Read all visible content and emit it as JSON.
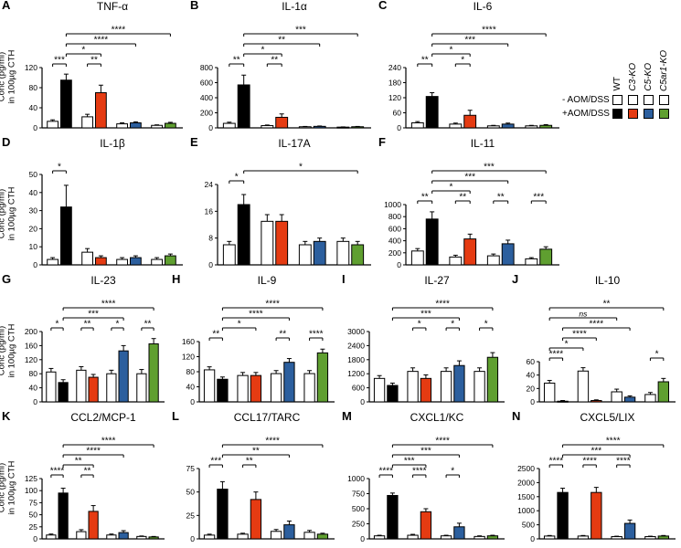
{
  "legend": {
    "groups": [
      "WT",
      "C3-KO",
      "C5-KO",
      "C5ar1-KO"
    ],
    "rows": [
      {
        "label": "- AOM/DSS",
        "fills": [
          "#ffffff",
          "#ffffff",
          "#ffffff",
          "#ffffff"
        ]
      },
      {
        "label": "+AOM/DSS",
        "fills": [
          "#000000",
          "#e53b12",
          "#2c5f9e",
          "#5f9f30"
        ]
      }
    ]
  },
  "chart_data": {
    "type": "bar",
    "shared_ylabel": "Conc (pg/ml) in 100µg CTH",
    "ylabel_line1": "Conc (pg/ml)",
    "ylabel_line2": "in 100µg CTH",
    "bar_order": [
      "WT -AOM/DSS",
      "WT +AOM/DSS",
      "C3-KO -AOM/DSS",
      "C3-KO +AOM/DSS",
      "C5-KO -AOM/DSS",
      "C5-KO +AOM/DSS",
      "C5ar1-KO -AOM/DSS",
      "C5ar1-KO +AOM/DSS"
    ],
    "panels": [
      {
        "letter": "A",
        "title": "TNF-α",
        "ylabel": true,
        "ylim": [
          0,
          120
        ],
        "yticks": [
          0,
          40,
          80,
          120
        ],
        "values": [
          13,
          95,
          22,
          70,
          8,
          10,
          5,
          9
        ],
        "errors": [
          3,
          12,
          5,
          15,
          2,
          2,
          1,
          2
        ],
        "sig": [
          {
            "i1": 0,
            "i2": 1,
            "label": "***",
            "level": 0
          },
          {
            "i1": 2,
            "i2": 3,
            "label": "**",
            "level": 0
          },
          {
            "i1": 1,
            "i2": 3,
            "label": "*",
            "level": 1
          },
          {
            "i1": 1,
            "i2": 5,
            "label": "****",
            "level": 2
          },
          {
            "i1": 1,
            "i2": 7,
            "label": "****",
            "level": 3
          }
        ]
      },
      {
        "letter": "B",
        "title": "IL-1α",
        "ylabel": false,
        "ylim": [
          0,
          800
        ],
        "yticks": [
          0,
          200,
          400,
          600,
          800
        ],
        "values": [
          60,
          570,
          30,
          140,
          15,
          20,
          10,
          15
        ],
        "errors": [
          15,
          130,
          8,
          45,
          4,
          5,
          3,
          4
        ],
        "sig": [
          {
            "i1": 0,
            "i2": 1,
            "label": "**",
            "level": 0
          },
          {
            "i1": 2,
            "i2": 3,
            "label": "**",
            "level": 0
          },
          {
            "i1": 1,
            "i2": 3,
            "label": "*",
            "level": 1
          },
          {
            "i1": 1,
            "i2": 5,
            "label": "**",
            "level": 2
          },
          {
            "i1": 1,
            "i2": 7,
            "label": "***",
            "level": 3
          }
        ]
      },
      {
        "letter": "C",
        "title": "IL-6",
        "ylabel": false,
        "ylim": [
          0,
          240
        ],
        "yticks": [
          0,
          60,
          120,
          180,
          240
        ],
        "values": [
          20,
          125,
          15,
          50,
          8,
          15,
          8,
          10
        ],
        "errors": [
          5,
          15,
          4,
          20,
          2,
          4,
          2,
          3
        ],
        "sig": [
          {
            "i1": 0,
            "i2": 1,
            "label": "**",
            "level": 0
          },
          {
            "i1": 2,
            "i2": 3,
            "label": "*",
            "level": 0
          },
          {
            "i1": 1,
            "i2": 3,
            "label": "*",
            "level": 1
          },
          {
            "i1": 1,
            "i2": 5,
            "label": "***",
            "level": 2
          },
          {
            "i1": 1,
            "i2": 7,
            "label": "****",
            "level": 3
          }
        ]
      },
      {
        "letter": "D",
        "title": "IL-1β",
        "ylabel": true,
        "ylim": [
          0,
          50
        ],
        "yticks": [
          0,
          10,
          20,
          30,
          40,
          50
        ],
        "values": [
          3,
          32,
          7,
          4,
          3,
          4,
          3,
          5
        ],
        "errors": [
          1,
          12,
          2,
          1,
          1,
          1,
          1,
          1
        ],
        "sig": [
          {
            "i1": 0,
            "i2": 1,
            "label": "*",
            "level": 0
          }
        ]
      },
      {
        "letter": "E",
        "title": "IL-17A",
        "ylabel": false,
        "ylim": [
          0,
          24
        ],
        "yticks": [
          0,
          8,
          16,
          24
        ],
        "values": [
          6,
          18,
          13,
          13,
          6,
          7,
          7,
          6
        ],
        "errors": [
          1,
          3,
          2,
          2,
          1,
          1,
          1,
          1
        ],
        "sig": [
          {
            "i1": 0,
            "i2": 1,
            "label": "*",
            "level": 0
          },
          {
            "i1": 1,
            "i2": 7,
            "label": "*",
            "level": 1
          }
        ]
      },
      {
        "letter": "F",
        "title": "IL-11",
        "ylabel": false,
        "ylim": [
          0,
          1000
        ],
        "yticks": [
          0,
          200,
          400,
          600,
          800,
          1000
        ],
        "values": [
          230,
          760,
          130,
          430,
          150,
          350,
          100,
          260
        ],
        "errors": [
          40,
          120,
          30,
          80,
          30,
          60,
          20,
          40
        ],
        "sig": [
          {
            "i1": 0,
            "i2": 1,
            "label": "**",
            "level": 0
          },
          {
            "i1": 2,
            "i2": 3,
            "label": "**",
            "level": 0
          },
          {
            "i1": 4,
            "i2": 5,
            "label": "**",
            "level": 0
          },
          {
            "i1": 6,
            "i2": 7,
            "label": "***",
            "level": 0
          },
          {
            "i1": 1,
            "i2": 3,
            "label": "*",
            "level": 1
          },
          {
            "i1": 1,
            "i2": 5,
            "label": "***",
            "level": 2
          },
          {
            "i1": 1,
            "i2": 7,
            "label": "***",
            "level": 3
          }
        ]
      },
      {
        "letter": "G",
        "title": "IL-23",
        "ylabel": true,
        "ylim": [
          0,
          200
        ],
        "yticks": [
          0,
          40,
          80,
          120,
          160,
          200
        ],
        "values": [
          85,
          55,
          90,
          70,
          80,
          145,
          80,
          165
        ],
        "errors": [
          10,
          8,
          10,
          8,
          10,
          15,
          12,
          15
        ],
        "sig": [
          {
            "i1": 0,
            "i2": 1,
            "label": "*",
            "level": 0
          },
          {
            "i1": 2,
            "i2": 3,
            "label": "**",
            "level": 0
          },
          {
            "i1": 4,
            "i2": 5,
            "label": "*",
            "level": 0
          },
          {
            "i1": 6,
            "i2": 7,
            "label": "**",
            "level": 0
          },
          {
            "i1": 1,
            "i2": 5,
            "label": "***",
            "level": 1
          },
          {
            "i1": 1,
            "i2": 7,
            "label": "****",
            "level": 2
          }
        ]
      },
      {
        "letter": "H",
        "title": "IL-9",
        "ylabel": false,
        "ylim": [
          0,
          160
        ],
        "yticks": [
          0,
          40,
          80,
          120,
          160
        ],
        "values": [
          85,
          60,
          70,
          70,
          75,
          105,
          75,
          130
        ],
        "errors": [
          8,
          6,
          8,
          8,
          8,
          10,
          8,
          10
        ],
        "sig": [
          {
            "i1": 0,
            "i2": 1,
            "label": "**",
            "level": 0
          },
          {
            "i1": 4,
            "i2": 5,
            "label": "**",
            "level": 0
          },
          {
            "i1": 6,
            "i2": 7,
            "label": "****",
            "level": 0
          },
          {
            "i1": 1,
            "i2": 3,
            "label": "*",
            "level": 1
          },
          {
            "i1": 1,
            "i2": 5,
            "label": "****",
            "level": 2
          },
          {
            "i1": 1,
            "i2": 7,
            "label": "****",
            "level": 3
          }
        ]
      },
      {
        "letter": "I",
        "title": "IL-27",
        "ylabel": false,
        "ylim": [
          0,
          3000
        ],
        "yticks": [
          0,
          600,
          1200,
          1800,
          2400,
          3000
        ],
        "values": [
          1000,
          700,
          1300,
          1000,
          1300,
          1550,
          1300,
          1900
        ],
        "errors": [
          120,
          100,
          150,
          150,
          150,
          200,
          150,
          200
        ],
        "sig": [
          {
            "i1": 2,
            "i2": 3,
            "label": "*",
            "level": 0
          },
          {
            "i1": 4,
            "i2": 5,
            "label": "*",
            "level": 0
          },
          {
            "i1": 6,
            "i2": 7,
            "label": "*",
            "level": 0
          },
          {
            "i1": 1,
            "i2": 5,
            "label": "***",
            "level": 1
          },
          {
            "i1": 1,
            "i2": 7,
            "label": "****",
            "level": 2
          }
        ]
      },
      {
        "letter": "J",
        "title": "IL-10",
        "ylabel": false,
        "ylim": [
          0,
          60
        ],
        "yticks": [
          0,
          20,
          40,
          60
        ],
        "values": [
          28,
          1,
          46,
          2,
          15,
          7,
          11,
          30
        ],
        "errors": [
          4,
          1,
          5,
          1,
          4,
          2,
          3,
          5
        ],
        "sig": [
          {
            "i1": 0,
            "i2": 1,
            "label": "****",
            "level": 0
          },
          {
            "i1": 6,
            "i2": 7,
            "label": "*",
            "level": 0
          },
          {
            "i1": 0,
            "i2": 2,
            "label": "*",
            "level": 1
          },
          {
            "i1": 1,
            "i2": 3,
            "label": "****",
            "level": 2
          },
          {
            "i1": 1,
            "i2": 5,
            "label": "****",
            "level": 3
          },
          {
            "i1": 0,
            "i2": 4,
            "label": "ns",
            "level": 4
          },
          {
            "i1": 0,
            "i2": 7,
            "label": "**",
            "level": 5
          }
        ]
      },
      {
        "letter": "K",
        "title": "CCL2/MCP-1",
        "ylabel": true,
        "ylim": [
          0,
          125
        ],
        "yticks": [
          0,
          25,
          50,
          75,
          100,
          125
        ],
        "values": [
          8,
          95,
          15,
          57,
          8,
          13,
          5,
          4
        ],
        "errors": [
          2,
          10,
          4,
          12,
          2,
          4,
          1,
          1
        ],
        "sig": [
          {
            "i1": 0,
            "i2": 1,
            "label": "****",
            "level": 0
          },
          {
            "i1": 2,
            "i2": 3,
            "label": "**",
            "level": 0
          },
          {
            "i1": 1,
            "i2": 3,
            "label": "**",
            "level": 1
          },
          {
            "i1": 1,
            "i2": 5,
            "label": "****",
            "level": 2
          },
          {
            "i1": 1,
            "i2": 7,
            "label": "****",
            "level": 3
          }
        ]
      },
      {
        "letter": "L",
        "title": "CCL17/TARC",
        "ylabel": false,
        "ylim": [
          0,
          75
        ],
        "yticks": [
          0,
          25,
          50,
          75
        ],
        "values": [
          4,
          53,
          5,
          42,
          8,
          15,
          7,
          5
        ],
        "errors": [
          1,
          8,
          1,
          8,
          2,
          4,
          2,
          1
        ],
        "sig": [
          {
            "i1": 0,
            "i2": 1,
            "label": "***",
            "level": 0
          },
          {
            "i1": 2,
            "i2": 3,
            "label": "**",
            "level": 0
          },
          {
            "i1": 1,
            "i2": 5,
            "label": "**",
            "level": 1
          },
          {
            "i1": 1,
            "i2": 7,
            "label": "****",
            "level": 2
          }
        ]
      },
      {
        "letter": "M",
        "title": "CXCL1/KC",
        "ylabel": false,
        "ylim": [
          0,
          1000
        ],
        "yticks": [
          0,
          250,
          500,
          750,
          1000
        ],
        "values": [
          50,
          720,
          60,
          450,
          50,
          200,
          40,
          50
        ],
        "errors": [
          10,
          40,
          15,
          50,
          10,
          60,
          10,
          10
        ],
        "sig": [
          {
            "i1": 0,
            "i2": 1,
            "label": "****",
            "level": 0
          },
          {
            "i1": 2,
            "i2": 3,
            "label": "****",
            "level": 0
          },
          {
            "i1": 4,
            "i2": 5,
            "label": "*",
            "level": 0
          },
          {
            "i1": 1,
            "i2": 3,
            "label": "***",
            "level": 1
          },
          {
            "i1": 1,
            "i2": 5,
            "label": "***",
            "level": 2
          },
          {
            "i1": 1,
            "i2": 7,
            "label": "****",
            "level": 3
          }
        ]
      },
      {
        "letter": "N",
        "title": "CXCL5/LIX",
        "ylabel": false,
        "ylim": [
          0,
          2500
        ],
        "yticks": [
          0,
          500,
          1000,
          1500,
          2000,
          2500
        ],
        "values": [
          100,
          1650,
          100,
          1650,
          80,
          550,
          80,
          100
        ],
        "errors": [
          20,
          150,
          20,
          180,
          15,
          120,
          15,
          20
        ],
        "sig": [
          {
            "i1": 0,
            "i2": 1,
            "label": "****",
            "level": 0
          },
          {
            "i1": 2,
            "i2": 3,
            "label": "****",
            "level": 0
          },
          {
            "i1": 4,
            "i2": 5,
            "label": "****",
            "level": 0
          },
          {
            "i1": 1,
            "i2": 5,
            "label": "***",
            "level": 1
          },
          {
            "i1": 1,
            "i2": 7,
            "label": "****",
            "level": 2
          }
        ]
      }
    ]
  }
}
